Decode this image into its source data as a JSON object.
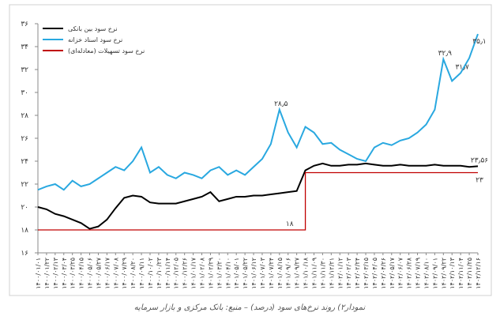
{
  "chart_data": {
    "type": "line",
    "caption": "نمودار۲) روند نرخ‌های سود (درصد) – منبع: بانک مرکزی و بازار سرمایه",
    "categories": [
      "۱۴۰۰/۰۱/۰۱",
      "۱۴۰۰/۰۱/۲۲",
      "۱۴۰۰/۰۲/۱۳",
      "۱۴۰۰/۰۳/۰۴",
      "۱۴۰۰/۰۳/۲۵",
      "۱۴۰۰/۰۴/۱۵",
      "۱۴۰۰/۰۵/۰۶",
      "۱۴۰۰/۰۵/۲۷",
      "۱۴۰۰/۰۶/۱۷",
      "۱۴۰۰/۰۷/۰۸",
      "۱۴۰۰/۰۷/۲۹",
      "۱۴۰۰/۰۸/۲۰",
      "۱۴۰۰/۰۹/۱۱",
      "۱۴۰۰/۱۰/۰۲",
      "۱۴۰۰/۱۰/۲۳",
      "۱۴۰۰/۱۱/۱۴",
      "۱۴۰۰/۱۲/۰۵",
      "۱۴۰۰/۱۲/۲۶",
      "۱۴۰۱/۰۱/۱۷",
      "۱۴۰۱/۰۲/۰۸",
      "۱۴۰۱/۰۲/۲۹",
      "۱۴۰۱/۰۳/۲۰",
      "۱۴۰۱/۰۴/۱۰",
      "۱۴۰۱/۰۵/۰۱",
      "۱۴۰۱/۰۵/۲۲",
      "۱۴۰۱/۰۶/۱۲",
      "۱۴۰۱/۰۷/۰۳",
      "۱۴۰۱/۰۷/۲۴",
      "۱۴۰۱/۰۸/۱۵",
      "۱۴۰۱/۰۹/۰۶",
      "۱۴۰۱/۰۹/۲۷",
      "۱۴۰۱/۱۰/۱۸",
      "۱۴۰۱/۱۱/۰۹",
      "۱۴۰۱/۱۱/۳۰",
      "۱۴۰۱/۱۲/۲۱",
      "۱۴۰۲/۰۱/۱۲",
      "۱۴۰۲/۰۲/۰۳",
      "۱۴۰۲/۰۲/۲۴",
      "۱۴۰۲/۰۳/۱۵",
      "۱۴۰۲/۰۴/۰۵",
      "۱۴۰۲/۰۴/۲۶",
      "۱۴۰۲/۰۵/۱۷",
      "۱۴۰۲/۰۶/۰۷",
      "۱۴۰۲/۰۶/۲۸",
      "۱۴۰۲/۰۷/۱۹",
      "۱۴۰۲/۰۸/۱۰",
      "۱۴۰۲/۰۹/۰۱",
      "۱۴۰۲/۰۹/۲۲",
      "۱۴۰۲/۱۰/۱۳",
      "۱۴۰۲/۱۱/۰۴",
      "۱۴۰۲/۱۱/۲۵",
      "۱۴۰۲/۱۲/۱۶"
    ],
    "series": [
      {
        "name": "نرخ سود بین بانکی",
        "color": "#000000",
        "values": [
          20.0,
          19.8,
          19.4,
          19.2,
          18.9,
          18.6,
          18.1,
          18.3,
          18.9,
          19.9,
          20.8,
          21.0,
          20.9,
          20.4,
          20.3,
          20.3,
          20.3,
          20.5,
          20.7,
          20.9,
          21.3,
          20.5,
          20.7,
          20.9,
          20.9,
          21.0,
          21.0,
          21.1,
          21.2,
          21.3,
          21.4,
          23.2,
          23.6,
          23.8,
          23.6,
          23.6,
          23.7,
          23.7,
          23.8,
          23.7,
          23.6,
          23.6,
          23.7,
          23.6,
          23.6,
          23.6,
          23.7,
          23.6,
          23.6,
          23.6,
          23.5,
          23.56
        ],
        "value_labels": [
          null,
          null,
          null,
          null,
          null,
          null,
          null,
          null,
          null,
          null,
          null,
          null,
          null,
          null,
          null,
          null,
          null,
          null,
          null,
          null,
          null,
          null,
          null,
          null,
          null,
          null,
          null,
          null,
          null,
          null,
          null,
          null,
          null,
          null,
          null,
          null,
          null,
          null,
          null,
          null,
          null,
          null,
          null,
          null,
          null,
          null,
          null,
          null,
          null,
          null,
          null,
          "۲۳٫۵۶"
        ]
      },
      {
        "name": "نرخ سود اسناد خزانه",
        "color": "#29a8e0",
        "values": [
          21.5,
          21.8,
          22.0,
          21.5,
          22.3,
          21.8,
          22.0,
          22.5,
          23.0,
          23.5,
          23.2,
          24.0,
          25.2,
          23.0,
          23.5,
          22.8,
          22.5,
          23.0,
          22.8,
          22.5,
          23.2,
          23.5,
          22.8,
          23.2,
          22.8,
          23.5,
          24.2,
          25.5,
          28.5,
          26.5,
          25.2,
          27.0,
          26.5,
          25.5,
          25.6,
          25.0,
          24.6,
          24.2,
          24.0,
          25.2,
          25.6,
          25.4,
          25.8,
          26.0,
          26.5,
          27.2,
          28.5,
          32.9,
          31.0,
          31.7,
          33.0,
          35.1
        ],
        "value_labels": [
          null,
          null,
          null,
          null,
          null,
          null,
          null,
          null,
          null,
          null,
          null,
          null,
          null,
          null,
          null,
          null,
          null,
          null,
          null,
          null,
          null,
          null,
          null,
          null,
          null,
          null,
          null,
          null,
          "۲۸٫۵",
          null,
          null,
          null,
          null,
          null,
          null,
          null,
          null,
          null,
          null,
          null,
          null,
          null,
          null,
          null,
          null,
          null,
          null,
          "۳۲٫۹",
          null,
          "۳۱٫۷",
          null,
          "۳۵٫۱"
        ]
      },
      {
        "name": "نرخ سود تسهیلات (معادله‌ای)",
        "color": "#c00000",
        "line_style": "step",
        "values": [
          18,
          18,
          18,
          18,
          18,
          18,
          18,
          18,
          18,
          18,
          18,
          18,
          18,
          18,
          18,
          18,
          18,
          18,
          18,
          18,
          18,
          18,
          18,
          18,
          18,
          18,
          18,
          18,
          18,
          18,
          18,
          23,
          23,
          23,
          23,
          23,
          23,
          23,
          23,
          23,
          23,
          23,
          23,
          23,
          23,
          23,
          23,
          23,
          23,
          23,
          23,
          23
        ],
        "value_labels": [
          null,
          null,
          null,
          null,
          null,
          null,
          null,
          null,
          null,
          null,
          null,
          null,
          null,
          null,
          null,
          null,
          null,
          null,
          null,
          null,
          null,
          null,
          null,
          null,
          null,
          null,
          null,
          null,
          null,
          "۱۸",
          null,
          null,
          null,
          null,
          null,
          null,
          null,
          null,
          null,
          null,
          null,
          null,
          null,
          null,
          null,
          null,
          null,
          null,
          null,
          null,
          null,
          "۲۳"
        ]
      }
    ],
    "ylim": [
      16,
      36
    ],
    "yticks": [
      {
        "value": 16,
        "label": "۱۶"
      },
      {
        "value": 18,
        "label": "۱۸"
      },
      {
        "value": 20,
        "label": "۲۰"
      },
      {
        "value": 22,
        "label": "۲۲"
      },
      {
        "value": 24,
        "label": "۲۴"
      },
      {
        "value": 26,
        "label": "۲۶"
      },
      {
        "value": 28,
        "label": "۲۸"
      },
      {
        "value": 30,
        "label": "۳۰"
      },
      {
        "value": 32,
        "label": "۳۲"
      },
      {
        "value": 34,
        "label": "۳۴"
      },
      {
        "value": 36,
        "label": "۳۶"
      }
    ],
    "grid": false,
    "legend": "top-left"
  }
}
